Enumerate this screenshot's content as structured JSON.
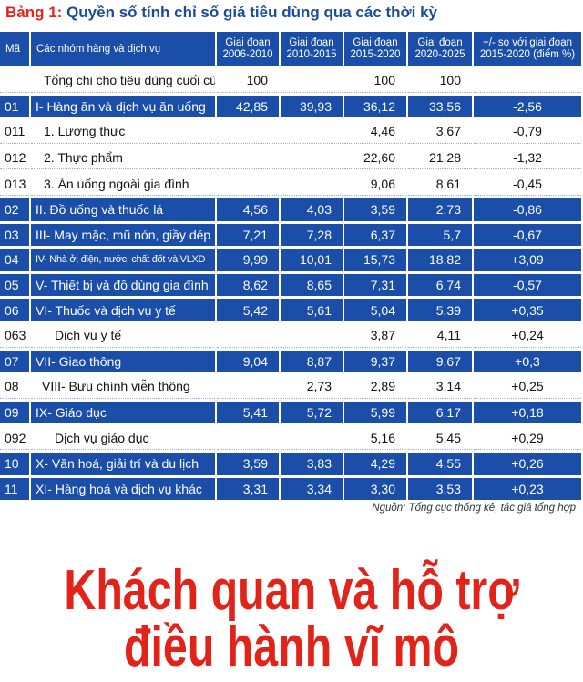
{
  "header": {
    "label": "Bảng 1:",
    "title": "Quyền số tính chỉ số giá tiêu dùng qua các thời kỳ"
  },
  "table": {
    "columns": [
      "Mã",
      "Các nhóm hàng và dịch vụ",
      "Giai đoạn 2006-2010",
      "Giai đoạn 2010-2015",
      "Giai đoạn 2015-2020",
      "Giai đoạn 2020-2025",
      "+/- so với giai đoạn 2015-2020 (điểm %)"
    ],
    "rows": [
      {
        "highlight": false,
        "cells": [
          null,
          "Tổng chi cho tiêu dùng cuối cùng",
          "100",
          null,
          "100",
          "100",
          null
        ]
      },
      {
        "highlight": true,
        "cells": [
          "01",
          "I- Hàng ăn và dịch vụ ăn uống",
          "42,85",
          "39,93",
          "36,12",
          "33,56",
          "-2,56"
        ]
      },
      {
        "highlight": false,
        "cells": [
          "011",
          "1. Lương thực",
          null,
          null,
          "4,46",
          "3,67",
          "-0,79"
        ]
      },
      {
        "highlight": false,
        "cells": [
          "012",
          "2. Thực phẩm",
          null,
          null,
          "22,60",
          "21,28",
          "-1,32"
        ]
      },
      {
        "highlight": false,
        "cells": [
          "013",
          "3. Ăn uống ngoài gia đình",
          null,
          null,
          "9,06",
          "8,61",
          "-0,45"
        ]
      },
      {
        "highlight": true,
        "cells": [
          "02",
          "II. Đồ uống và thuốc lá",
          "4,56",
          "4,03",
          "3,59",
          "2,73",
          "-0,86"
        ]
      },
      {
        "highlight": true,
        "cells": [
          "03",
          "III- May mặc, mũ nón, giầy dép",
          "7,21",
          "7,28",
          "6,37",
          "5,7",
          "-0,67"
        ]
      },
      {
        "highlight": true,
        "cells": [
          "04",
          "IV- Nhà ở, điện, nước, chất đốt và VLXD",
          "9,99",
          "10,01",
          "15,73",
          "18,82",
          "+3,09"
        ]
      },
      {
        "highlight": true,
        "cells": [
          "05",
          "V- Thiết bị và đồ dùng gia đình",
          "8,62",
          "8,65",
          "7,31",
          "6,74",
          "-0,57"
        ]
      },
      {
        "highlight": true,
        "cells": [
          "06",
          "VI- Thuốc và dịch vụ y tế",
          "5,42",
          "5,61",
          "5,04",
          "5,39",
          "+0,35"
        ]
      },
      {
        "highlight": false,
        "cells": [
          "063",
          "Dịch vụ y tế",
          null,
          null,
          "3,87",
          "4,11",
          "+0,24"
        ]
      },
      {
        "highlight": true,
        "cells": [
          "07",
          "VII- Giao thông",
          "9,04",
          "8,87",
          "9,37",
          "9,67",
          "+0,3"
        ]
      },
      {
        "highlight": false,
        "cells": [
          "08",
          "VIII- Bưu chính viễn thông",
          null,
          "2,73",
          "2,89",
          "3,14",
          "+0,25"
        ]
      },
      {
        "highlight": true,
        "cells": [
          "09",
          "IX- Giáo dục",
          "5,41",
          "5,72",
          "5,99",
          "6,17",
          "+0,18"
        ]
      },
      {
        "highlight": false,
        "cells": [
          "092",
          "Dịch vụ giáo dục",
          null,
          null,
          "5,16",
          "5,45",
          "+0,29"
        ]
      },
      {
        "highlight": true,
        "cells": [
          "10",
          "X- Văn hoá, giải trí và du lịch",
          "3,59",
          "3,83",
          "4,29",
          "4,55",
          "+0,26"
        ]
      },
      {
        "highlight": true,
        "cells": [
          "11",
          "XI- Hàng hoá và dịch vụ khác",
          "3,31",
          "3,34",
          "3,30",
          "3,53",
          "+0,23"
        ]
      }
    ]
  },
  "source": "Nguồn: Tổng cục thống kê, tác giả tổng hợp",
  "headline": {
    "lines": [
      "Khách quan và hỗ trợ",
      "điều hành vĩ mô"
    ]
  }
}
